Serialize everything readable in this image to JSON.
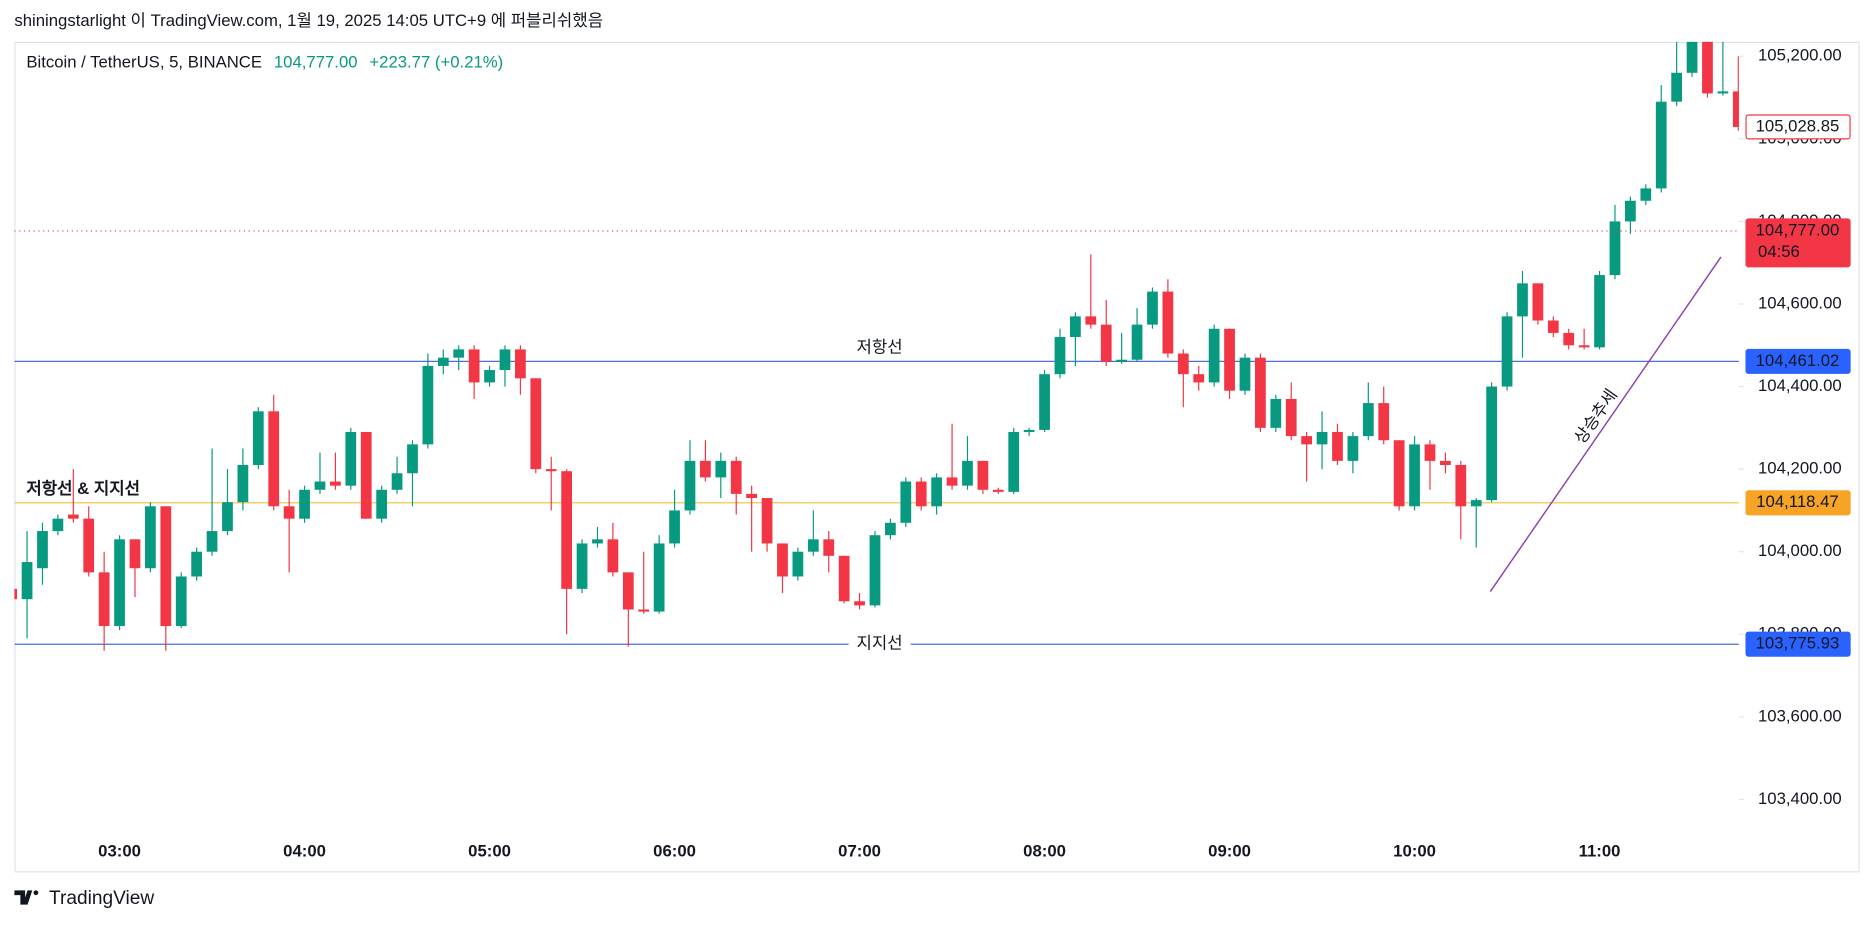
{
  "header": {
    "publisher": "shiningstarlight 이 TradingView.com, 1월 19, 2025 14:05 UTC+9 에 퍼블리쉬했음"
  },
  "footer": {
    "brand": "TradingView"
  },
  "annotations": {
    "trend": "상승추세"
  },
  "chart_data": {
    "type": "candlestick",
    "title": "Bitcoin / TetherUS, 5, BINANCE",
    "price": "104,777.00",
    "change": "+223.77 (+0.21%)",
    "up_color": "#089981",
    "down_color": "#f23645",
    "x": [
      "02:25",
      "02:30",
      "02:35",
      "02:40",
      "02:45",
      "02:50",
      "02:55",
      "03:00",
      "03:05",
      "03:10",
      "03:15",
      "03:20",
      "03:25",
      "03:30",
      "03:35",
      "03:40",
      "03:45",
      "03:50",
      "03:55",
      "04:00",
      "04:05",
      "04:10",
      "04:15",
      "04:20",
      "04:25",
      "04:30",
      "04:35",
      "04:40",
      "04:45",
      "04:50",
      "04:55",
      "05:00",
      "05:05",
      "05:10",
      "05:15",
      "05:20",
      "05:25",
      "05:30",
      "05:35",
      "05:40",
      "05:45",
      "05:50",
      "05:55",
      "06:00",
      "06:05",
      "06:10",
      "06:15",
      "06:20",
      "06:25",
      "06:30",
      "06:35",
      "06:40",
      "06:45",
      "06:50",
      "06:55",
      "07:00",
      "07:05",
      "07:10",
      "07:15",
      "07:20",
      "07:25",
      "07:30",
      "07:35",
      "07:40",
      "07:45",
      "07:50",
      "07:55",
      "08:00",
      "08:05",
      "08:10",
      "08:15",
      "08:20",
      "08:25",
      "08:30",
      "08:35",
      "08:40",
      "08:45",
      "08:50",
      "08:55",
      "09:00",
      "09:05",
      "09:10",
      "09:15",
      "09:20",
      "09:25",
      "09:30",
      "09:35",
      "09:40",
      "09:45",
      "09:50",
      "09:55",
      "10:00",
      "10:05",
      "10:10",
      "10:15",
      "10:20",
      "10:25",
      "10:30",
      "10:35",
      "10:40",
      "10:45",
      "10:50",
      "10:55",
      "11:00",
      "11:05",
      "11:10",
      "11:15",
      "11:20",
      "11:25",
      "11:30",
      "11:35",
      "11:40",
      "11:45"
    ],
    "open": [
      103910,
      103885,
      103960,
      104050,
      104090,
      104080,
      103950,
      103820,
      104030,
      103960,
      104110,
      103820,
      103940,
      104000,
      104050,
      104120,
      104210,
      104340,
      104110,
      104080,
      104150,
      104170,
      104160,
      104290,
      104080,
      104150,
      104190,
      104260,
      104450,
      104470,
      104490,
      104410,
      104440,
      104490,
      104420,
      104200,
      104195,
      103910,
      104020,
      104030,
      103950,
      103860,
      103855,
      104020,
      104100,
      104220,
      104180,
      104220,
      104140,
      104130,
      104020,
      103940,
      104000,
      104030,
      103990,
      103880,
      103870,
      104040,
      104070,
      104170,
      104110,
      104180,
      104160,
      104220,
      104150,
      104145,
      104290,
      104295,
      104430,
      104520,
      104570,
      104550,
      104460,
      104465,
      104550,
      104630,
      104480,
      104430,
      104410,
      104540,
      104390,
      104470,
      104300,
      104370,
      104280,
      104260,
      104290,
      104220,
      104280,
      104360,
      104270,
      104110,
      104260,
      104220,
      104210,
      104110,
      104125,
      104400,
      104570,
      104650,
      104560,
      104530,
      104500,
      104495,
      104670,
      104800,
      104850,
      104880,
      105090,
      105160,
      105240,
      105110,
      105115
    ],
    "high": [
      103915,
      104050,
      104070,
      104090,
      104200,
      104110,
      104000,
      104040,
      104030,
      104120,
      104110,
      103950,
      104010,
      104250,
      104200,
      104250,
      104350,
      104380,
      104150,
      104160,
      104240,
      104240,
      104300,
      104290,
      104160,
      104230,
      104270,
      104480,
      104490,
      104500,
      104500,
      104450,
      104500,
      104500,
      104420,
      104230,
      104200,
      104030,
      104060,
      104070,
      103950,
      104000,
      104040,
      104150,
      104270,
      104270,
      104240,
      104230,
      104160,
      104130,
      104020,
      104010,
      104100,
      104050,
      103990,
      103900,
      104050,
      104080,
      104180,
      104180,
      104190,
      104310,
      104280,
      104220,
      104155,
      104300,
      104300,
      104440,
      104540,
      104580,
      104720,
      104610,
      104530,
      104590,
      104640,
      104660,
      104490,
      104450,
      104550,
      104540,
      104480,
      104480,
      104380,
      104410,
      104290,
      104340,
      104310,
      104290,
      104410,
      104400,
      104270,
      104280,
      104270,
      104240,
      104220,
      104130,
      104410,
      104580,
      104680,
      104650,
      104570,
      104540,
      104540,
      104680,
      104840,
      104860,
      104890,
      105130,
      105250,
      105250,
      105250,
      105250,
      105200
    ],
    "low": [
      103880,
      103790,
      103920,
      104040,
      104070,
      103940,
      103760,
      103810,
      103890,
      103950,
      103760,
      103815,
      103930,
      103990,
      104040,
      104100,
      104200,
      104100,
      103950,
      104070,
      104140,
      104150,
      104150,
      104080,
      104070,
      104140,
      104110,
      104250,
      104430,
      104440,
      104370,
      104400,
      104400,
      104380,
      104190,
      104100,
      103800,
      103900,
      104010,
      103940,
      103770,
      103850,
      103850,
      104010,
      104090,
      104170,
      104130,
      104090,
      104000,
      104000,
      103900,
      103930,
      103990,
      103950,
      103875,
      103860,
      103865,
      104030,
      104060,
      104100,
      104090,
      104150,
      104150,
      104140,
      104140,
      104140,
      104280,
      104290,
      104420,
      104450,
      104540,
      104450,
      104455,
      104460,
      104540,
      104470,
      104350,
      104390,
      104400,
      104370,
      104380,
      104290,
      104290,
      104270,
      104170,
      104200,
      104210,
      104190,
      104270,
      104260,
      104100,
      104100,
      104150,
      104190,
      104030,
      104010,
      104120,
      104390,
      104470,
      104550,
      104520,
      104490,
      104490,
      104490,
      104660,
      104770,
      104840,
      104870,
      105080,
      105150,
      105100,
      105105,
      105020
    ],
    "close": [
      103885,
      103975,
      104050,
      104080,
      104080,
      103950,
      103820,
      104030,
      103960,
      104110,
      103820,
      103940,
      104000,
      104050,
      104120,
      104210,
      104340,
      104110,
      104080,
      104150,
      104170,
      104160,
      104290,
      104080,
      104150,
      104190,
      104260,
      104450,
      104470,
      104490,
      104410,
      104440,
      104490,
      104420,
      104200,
      104195,
      103910,
      104020,
      104030,
      103950,
      103860,
      103855,
      104020,
      104100,
      104220,
      104180,
      104220,
      104140,
      104130,
      104020,
      103940,
      104000,
      104030,
      103990,
      103880,
      103870,
      104040,
      104070,
      104170,
      104110,
      104180,
      104160,
      104220,
      104150,
      104145,
      104290,
      104295,
      104430,
      104520,
      104570,
      104550,
      104460,
      104465,
      104550,
      104630,
      104480,
      104430,
      104410,
      104540,
      104390,
      104470,
      104300,
      104370,
      104280,
      104260,
      104290,
      104220,
      104280,
      104360,
      104270,
      104110,
      104260,
      104220,
      104210,
      104110,
      104125,
      104400,
      104570,
      104650,
      104560,
      104530,
      104500,
      104495,
      104670,
      104800,
      104850,
      104880,
      105090,
      105160,
      105240,
      105110,
      105115,
      105028.85
    ],
    "ylim": [
      103229,
      105235
    ],
    "yticks": [
      {
        "value": 103400,
        "label": "103,400.00"
      },
      {
        "value": 103600,
        "label": "103,600.00"
      },
      {
        "value": 103800,
        "label": "103,800.00"
      },
      {
        "value": 104000,
        "label": "104,000.00"
      },
      {
        "value": 104200,
        "label": "104,200.00"
      },
      {
        "value": 104400,
        "label": "104,400.00"
      },
      {
        "value": 104600,
        "label": "104,600.00"
      },
      {
        "value": 104800,
        "label": "104,800.00"
      },
      {
        "value": 105000,
        "label": "105,000.00"
      },
      {
        "value": 105200,
        "label": "105,200.00"
      }
    ],
    "xticks": [
      "03:00",
      "04:00",
      "05:00",
      "06:00",
      "07:00",
      "08:00",
      "09:00",
      "10:00",
      "11:00"
    ],
    "levels": [
      {
        "value": 104461.02,
        "color": "#4a6fd6",
        "text": "저항선",
        "text_color": "#2962ff",
        "label_place": "above"
      },
      {
        "value": 104118.47,
        "color": "#f2c037",
        "text": "저항선 & 지지선",
        "text_color": "#f57c00",
        "label_place": "left"
      },
      {
        "value": 103775.93,
        "color": "#4a6fd6",
        "text": "지지선",
        "text_color": "#2962ff",
        "label_place": "on"
      }
    ],
    "badges": [
      {
        "value": 105028.85,
        "label": "105,028.85",
        "color": "#f23645",
        "text_color": "#f23645",
        "style": "outline"
      },
      {
        "value": 104777.0,
        "label": "104,777.00",
        "countdown": "04:56",
        "color": "#f23645",
        "text_color": "#ffffff",
        "style": "fill",
        "dotted_line": true
      },
      {
        "value": 104461.02,
        "label": "104,461.02",
        "color": "#2962ff",
        "text_color": "#ffffff",
        "style": "fill"
      },
      {
        "value": 104118.47,
        "label": "104,118.47",
        "color": "#f7a325",
        "text_color": "#131722",
        "style": "fill"
      },
      {
        "value": 103775.93,
        "label": "103,775.93",
        "color": "#2962ff",
        "text_color": "#ffffff",
        "style": "fill"
      }
    ]
  }
}
